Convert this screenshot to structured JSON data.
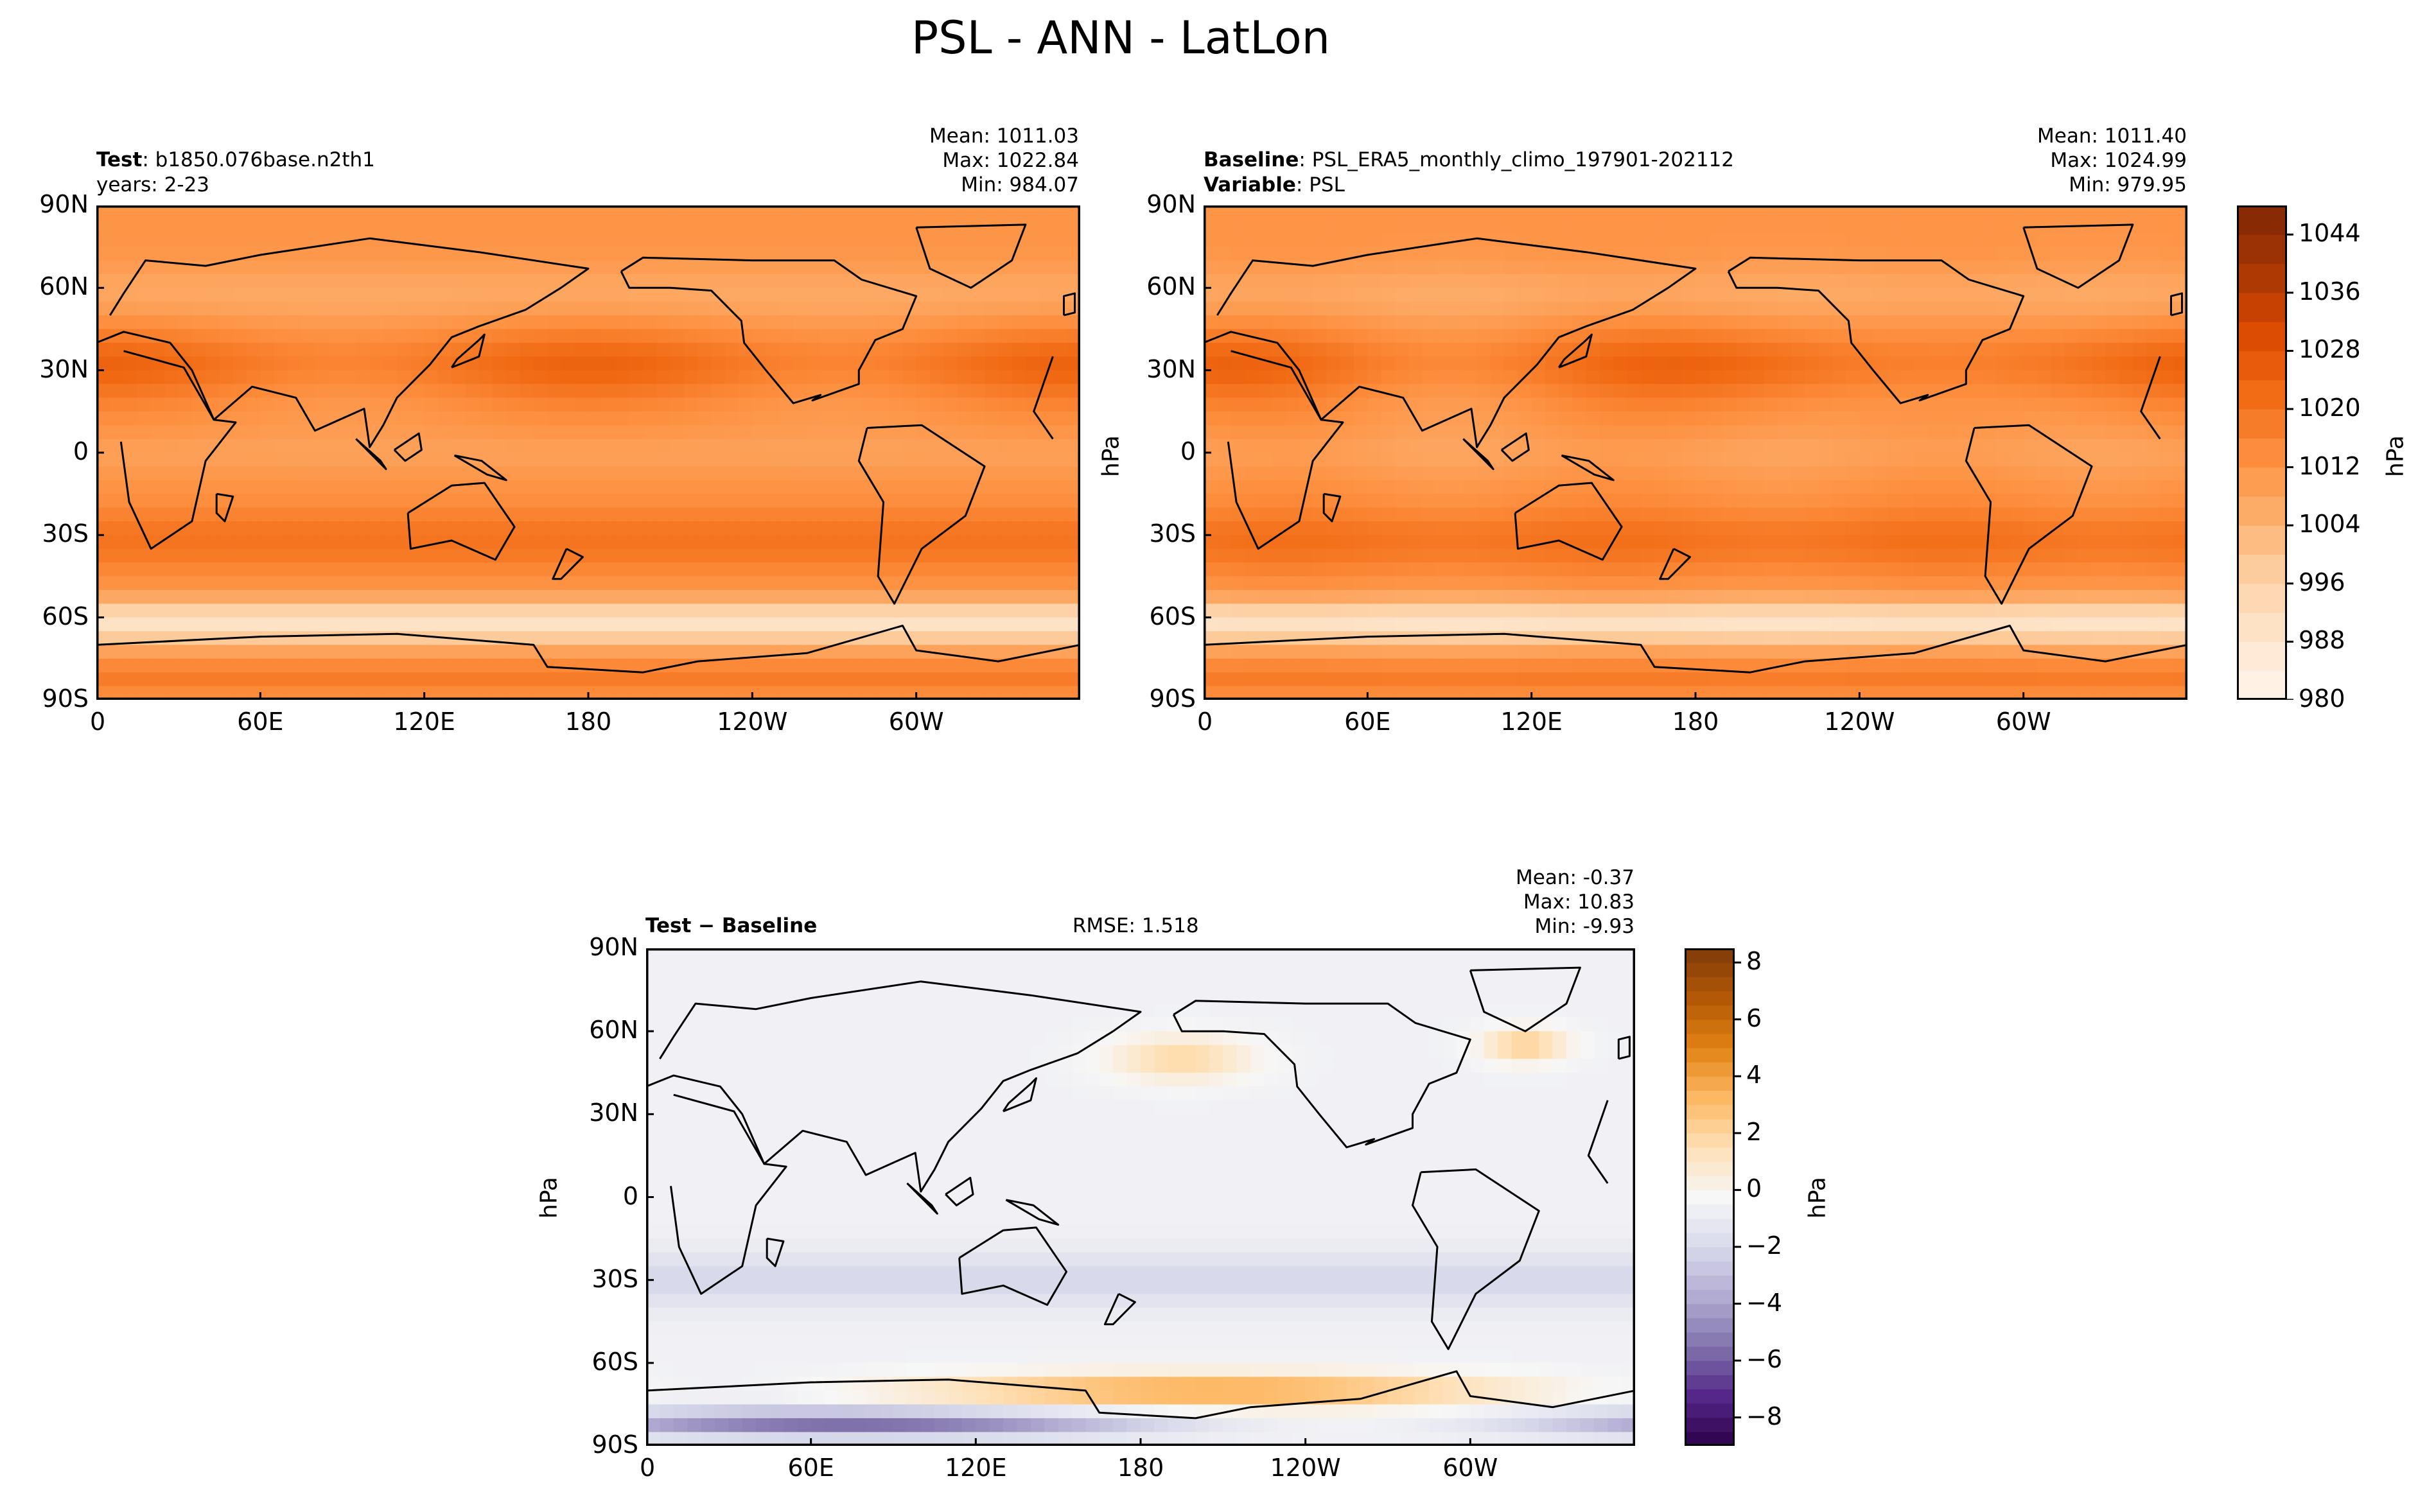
{
  "suptitle": "PSL - ANN - LatLon",
  "panels": {
    "test": {
      "label_bold": "Test",
      "label_sep": ": ",
      "label_value": "b1850.076base.n2th1",
      "years": "years: 2-23",
      "mean": "Mean: 1011.03",
      "max": "Max: 1022.84",
      "min": "Min: 984.07"
    },
    "baseline": {
      "label_bold": "Baseline",
      "label_sep": ": ",
      "label_value": "PSL_ERA5_monthly_climo_197901-202112",
      "variable_bold": "Variable",
      "variable_sep": ": ",
      "variable_value": "PSL",
      "mean": "Mean: 1011.40",
      "max": "Max: 1024.99",
      "min": "Min: 979.95"
    },
    "diff": {
      "label": "Test − Baseline",
      "rmse": "RMSE: 1.518",
      "mean": "Mean: -0.37",
      "max": "Max: 10.83",
      "min": "Min: -9.93"
    }
  },
  "colors": {
    "oranges": [
      "#fff5eb",
      "#fee6ce",
      "#fdd0a2",
      "#fdae6b",
      "#fd8d3c",
      "#f16913",
      "#d94801",
      "#a63603",
      "#7f2704"
    ],
    "puor": [
      "#2d004b",
      "#542788",
      "#8073ac",
      "#b2abd2",
      "#d8daeb",
      "#f7f7f7",
      "#fee0b6",
      "#fdb863",
      "#e08214",
      "#b35806",
      "#7f3b08"
    ],
    "coast": "#000000"
  },
  "chart_data": [
    {
      "type": "heatmap",
      "title": "Test: b1850.076base.n2th1",
      "subtitle": "years: 2-23",
      "xlabel": "",
      "ylabel": "",
      "x_ticks": [
        "0",
        "60E",
        "120E",
        "180",
        "120W",
        "60W"
      ],
      "y_ticks": [
        "90N",
        "60N",
        "30N",
        "0",
        "30S",
        "60S",
        "90S"
      ],
      "xlim": [
        0,
        360
      ],
      "ylim": [
        -90,
        90
      ],
      "mean": 1011.03,
      "max": 1022.84,
      "min": 984.07
    },
    {
      "type": "heatmap",
      "title": "Baseline: PSL_ERA5_monthly_climo_197901-202112",
      "subtitle": "Variable: PSL",
      "xlabel": "",
      "ylabel": "hPa",
      "x_ticks": [
        "0",
        "60E",
        "120E",
        "180",
        "120W",
        "60W"
      ],
      "y_ticks": [
        "90N",
        "60N",
        "30N",
        "0",
        "30S",
        "60S",
        "90S"
      ],
      "xlim": [
        0,
        360
      ],
      "ylim": [
        -90,
        90
      ],
      "mean": 1011.4,
      "max": 1024.99,
      "min": 979.95,
      "colorbar": {
        "label": "hPa",
        "range": [
          980,
          1048
        ],
        "ticks": [
          "1044",
          "1036",
          "1028",
          "1020",
          "1012",
          "1004",
          "996",
          "988",
          "980"
        ]
      }
    },
    {
      "type": "heatmap",
      "title": "Test − Baseline",
      "subtitle": "RMSE: 1.518",
      "xlabel": "",
      "ylabel": "hPa",
      "x_ticks": [
        "0",
        "60E",
        "120E",
        "180",
        "120W",
        "60W"
      ],
      "y_ticks": [
        "90N",
        "60N",
        "30N",
        "0",
        "30S",
        "60S",
        "90S"
      ],
      "xlim": [
        0,
        360
      ],
      "ylim": [
        -90,
        90
      ],
      "mean": -0.37,
      "max": 10.83,
      "min": -9.93,
      "rmse": 1.518,
      "colorbar": {
        "label": "hPa",
        "range": [
          -9,
          8.5
        ],
        "ticks": [
          "8",
          "6",
          "4",
          "2",
          "0",
          "−2",
          "−4",
          "−6",
          "−8"
        ]
      }
    }
  ]
}
